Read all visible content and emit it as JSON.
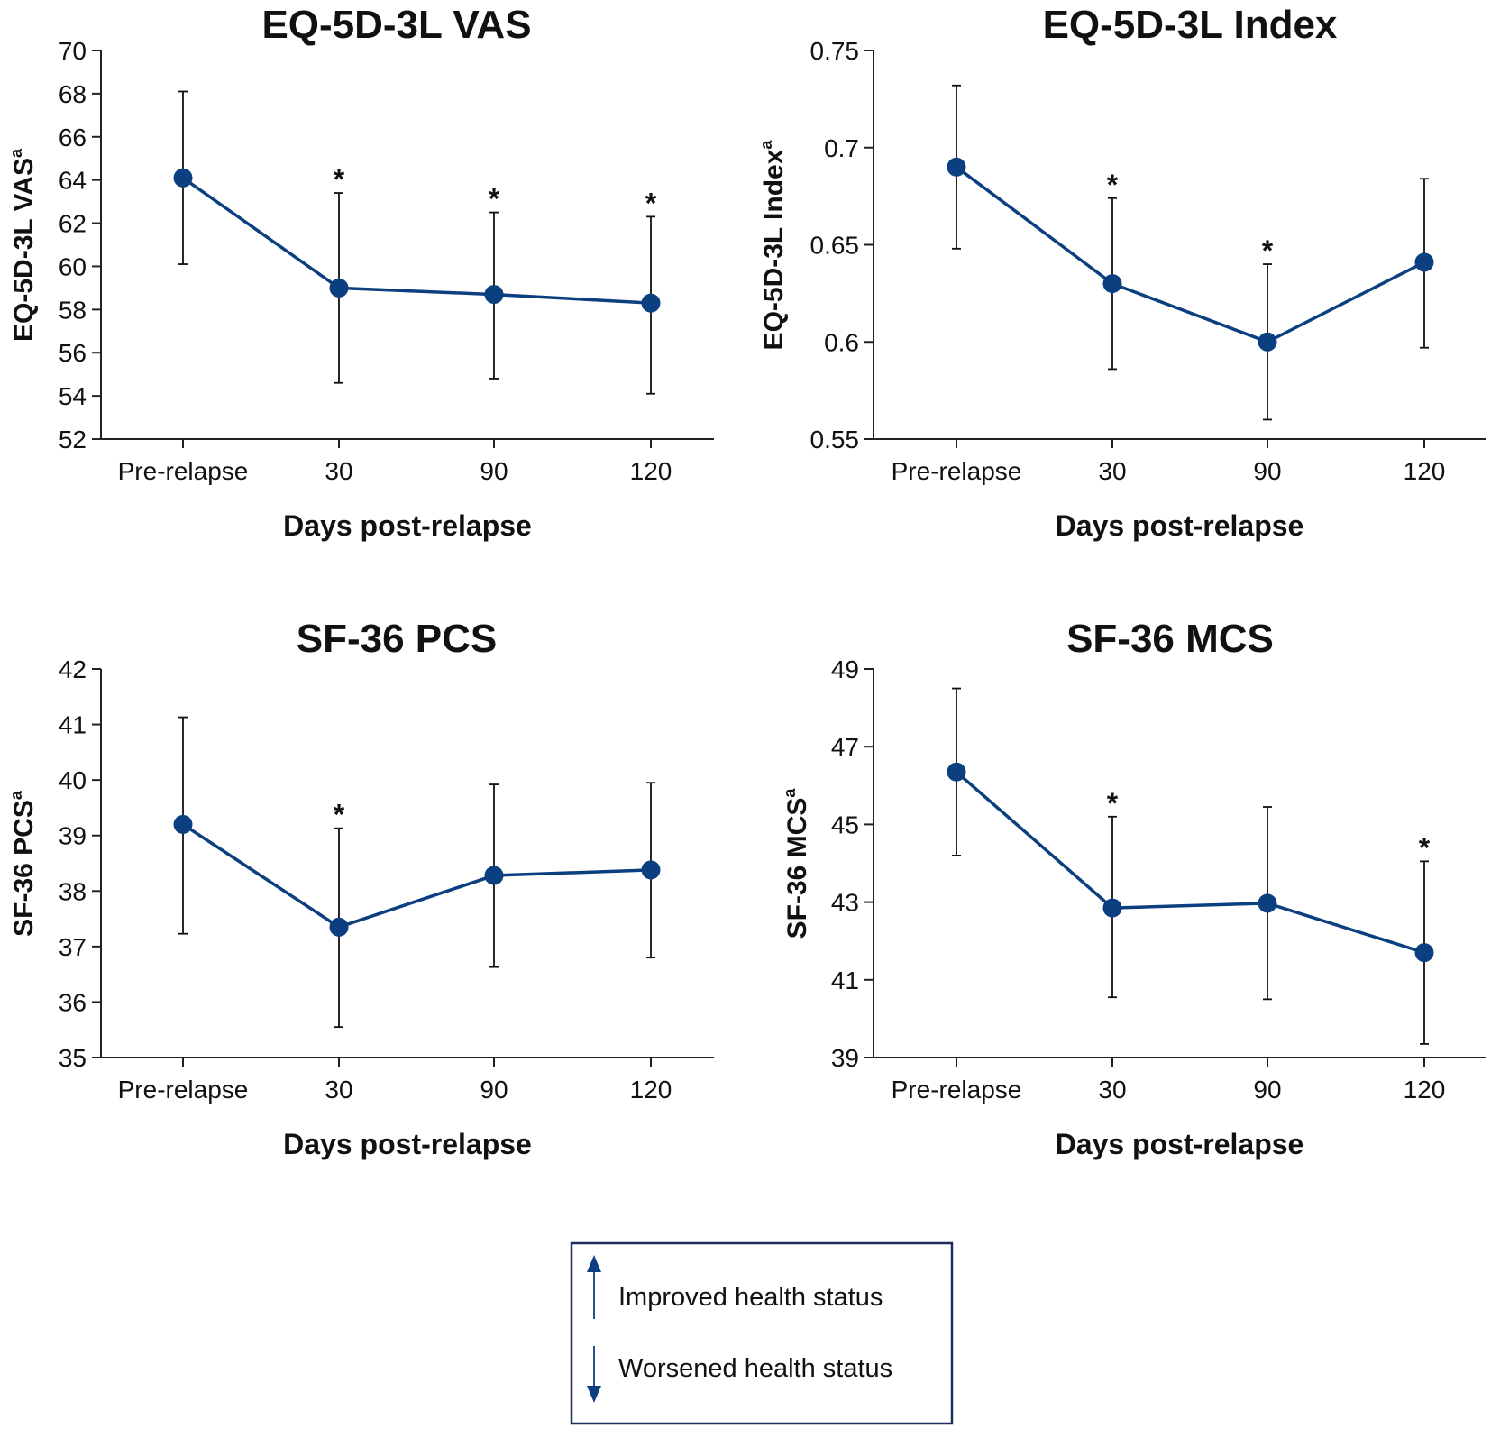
{
  "chart_data": [
    {
      "type": "line",
      "title": "EQ-5D-3L VAS",
      "ylabel": "EQ-5D-3L VAS",
      "ylabel_sup": "a",
      "xlabel": "Days post-relapse",
      "categories": [
        "Pre-relapse",
        "30",
        "90",
        "120"
      ],
      "values": [
        64.1,
        59.0,
        58.7,
        58.3
      ],
      "err_upper": [
        68.1,
        63.4,
        62.5,
        62.3
      ],
      "err_lower": [
        60.1,
        54.6,
        54.8,
        54.1
      ],
      "significant": [
        false,
        true,
        true,
        true
      ],
      "star_label": "*",
      "ylim": [
        52,
        70
      ],
      "yticks": [
        52,
        54,
        56,
        58,
        60,
        62,
        64,
        66,
        68,
        70
      ],
      "ytick_labels": [
        "52",
        "54",
        "56",
        "58",
        "60",
        "62",
        "64",
        "66",
        "68",
        "70"
      ]
    },
    {
      "type": "line",
      "title": "EQ-5D-3L Index",
      "ylabel": "EQ-5D-3L Index",
      "ylabel_sup": "a",
      "xlabel": "Days post-relapse",
      "categories": [
        "Pre-relapse",
        "30",
        "90",
        "120"
      ],
      "values": [
        0.69,
        0.63,
        0.6,
        0.641
      ],
      "err_upper": [
        0.732,
        0.674,
        0.64,
        0.684
      ],
      "err_lower": [
        0.648,
        0.586,
        0.56,
        0.597
      ],
      "significant": [
        false,
        true,
        true,
        false
      ],
      "star_label": "*",
      "ylim": [
        0.55,
        0.75
      ],
      "yticks": [
        0.55,
        0.6,
        0.65,
        0.7,
        0.75
      ],
      "ytick_labels": [
        "0.55",
        "0.6",
        "0.65",
        "0.7",
        "0.75"
      ]
    },
    {
      "type": "line",
      "title": "SF-36 PCS",
      "ylabel": "SF-36 PCS",
      "ylabel_sup": "a",
      "xlabel": "Days post-relapse",
      "categories": [
        "Pre-relapse",
        "30",
        "90",
        "120"
      ],
      "values": [
        39.2,
        37.35,
        38.28,
        38.38
      ],
      "err_upper": [
        41.13,
        39.13,
        39.92,
        39.95
      ],
      "err_lower": [
        37.23,
        35.55,
        36.63,
        36.8
      ],
      "significant": [
        false,
        true,
        false,
        false
      ],
      "star_label": "*",
      "ylim": [
        35,
        42
      ],
      "yticks": [
        35,
        36,
        37,
        38,
        39,
        40,
        41,
        42
      ],
      "ytick_labels": [
        "35",
        "36",
        "37",
        "38",
        "39",
        "40",
        "41",
        "42"
      ]
    },
    {
      "type": "line",
      "title": "SF-36 MCS",
      "ylabel": "SF-36 MCS",
      "ylabel_sup": "a",
      "xlabel": "Days post-relapse",
      "categories": [
        "Pre-relapse",
        "30",
        "90",
        "120"
      ],
      "values": [
        46.35,
        42.85,
        42.97,
        41.7
      ],
      "err_upper": [
        48.5,
        45.2,
        45.45,
        44.05
      ],
      "err_lower": [
        44.2,
        40.55,
        40.5,
        39.35
      ],
      "significant": [
        false,
        true,
        false,
        true
      ],
      "star_label": "*",
      "ylim": [
        39,
        49
      ],
      "yticks": [
        39,
        41,
        43,
        45,
        47,
        49
      ],
      "ytick_labels": [
        "39",
        "41",
        "43",
        "45",
        "47",
        "49"
      ]
    }
  ],
  "legend": {
    "improved": "Improved health status",
    "worsened": "Worsened health status"
  },
  "colors": {
    "series": "#0b3f7f",
    "errorbar": "#111111",
    "axis": "#222222",
    "legend_border": "#1f2d5c"
  }
}
